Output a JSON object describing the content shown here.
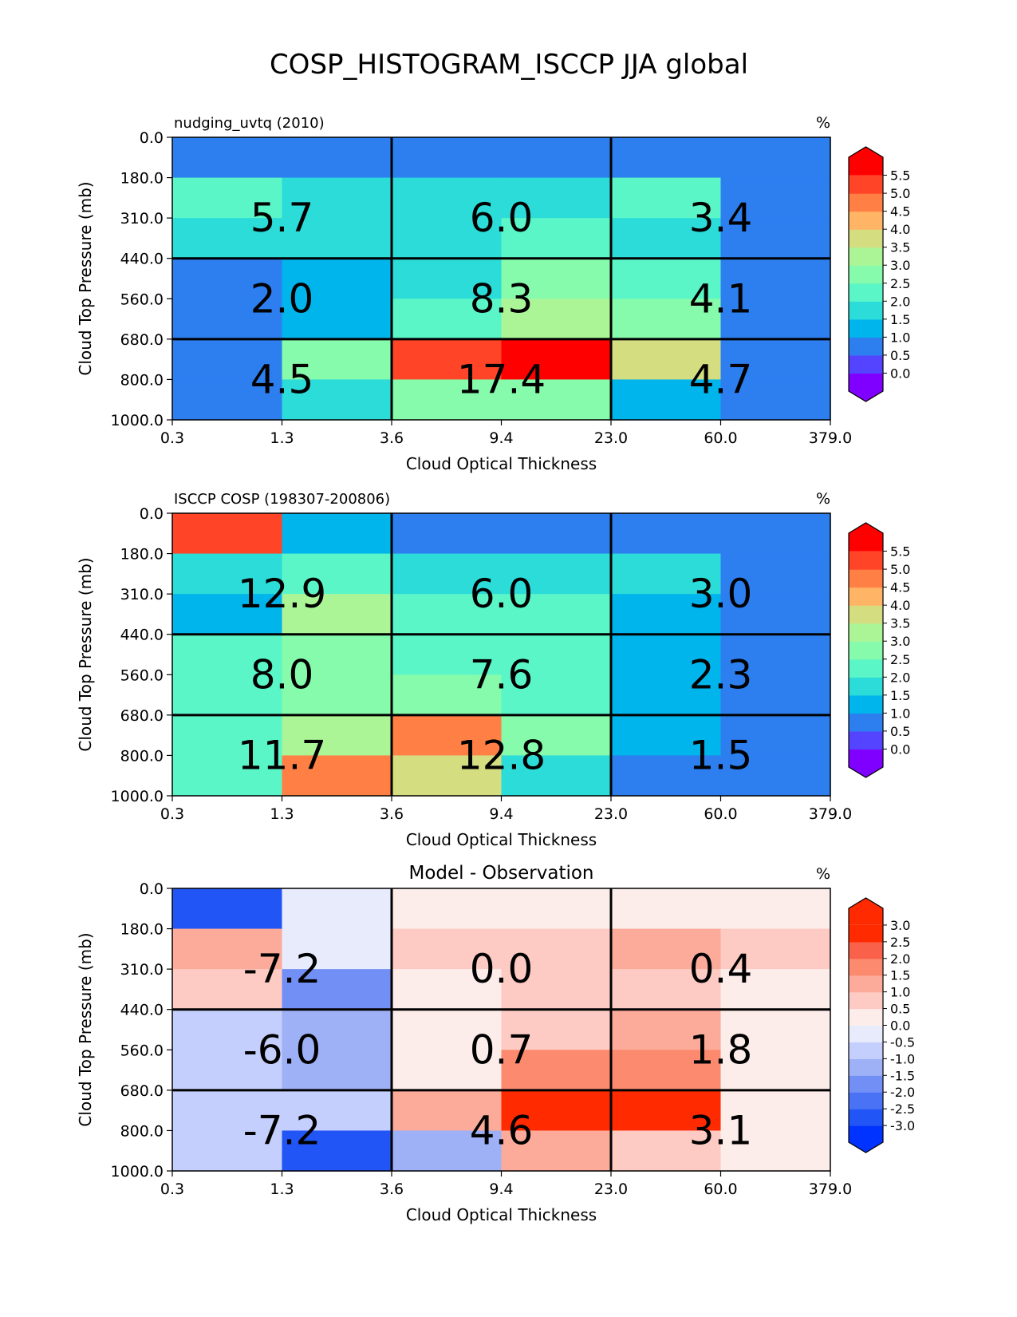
{
  "figure": {
    "title": "COSP_HISTOGRAM_ISCCP JJA global"
  },
  "chart_data": [
    {
      "type": "heatmap",
      "title": "nudging_uvtq (2010)",
      "units": "%",
      "xlabel": "Cloud Optical Thickness",
      "ylabel": "Cloud Top Pressure (mb)",
      "x_ticks": [
        "0.3",
        "1.3",
        "3.6",
        "9.4",
        "23.0",
        "60.0",
        "379.0"
      ],
      "y_ticks": [
        "0.0",
        "180.0",
        "310.0",
        "440.0",
        "560.0",
        "680.0",
        "800.0",
        "1000.0"
      ],
      "values": [
        [
          0.3,
          0.3,
          0.3,
          0.3,
          0.3,
          0.3
        ],
        [
          2.0,
          1.5,
          1.5,
          1.5,
          2.0,
          0.3
        ],
        [
          1.5,
          1.5,
          1.5,
          2.0,
          1.5,
          0.3
        ],
        [
          0.3,
          0.8,
          1.5,
          2.5,
          2.0,
          0.3
        ],
        [
          0.3,
          0.8,
          2.0,
          3.0,
          2.5,
          0.3
        ],
        [
          0.3,
          2.5,
          5.2,
          5.8,
          3.7,
          0.3
        ],
        [
          0.3,
          1.5,
          2.5,
          2.5,
          0.8,
          0.3
        ]
      ],
      "group_labels": [
        [
          "5.7",
          "6.0",
          "3.4"
        ],
        [
          "2.0",
          "8.3",
          "4.1"
        ],
        [
          "4.5",
          "17.4",
          "4.7"
        ]
      ],
      "colorbar": {
        "ticks": [
          "5.5",
          "5.0",
          "4.5",
          "4.0",
          "3.5",
          "3.0",
          "2.5",
          "2.0",
          "1.5",
          "1.0",
          "0.5",
          "0.0"
        ],
        "min": -0.25,
        "max": 5.75,
        "step": 0.5
      }
    },
    {
      "type": "heatmap",
      "title": "ISCCP COSP (198307-200806)",
      "units": "%",
      "xlabel": "Cloud Optical Thickness",
      "ylabel": "Cloud Top Pressure (mb)",
      "x_ticks": [
        "0.3",
        "1.3",
        "3.6",
        "9.4",
        "23.0",
        "60.0",
        "379.0"
      ],
      "y_ticks": [
        "0.0",
        "180.0",
        "310.0",
        "440.0",
        "560.0",
        "680.0",
        "800.0",
        "1000.0"
      ],
      "values": [
        [
          5.2,
          0.8,
          0.3,
          0.3,
          0.3,
          0.3
        ],
        [
          1.5,
          2.0,
          1.5,
          1.5,
          1.5,
          0.3
        ],
        [
          0.8,
          3.2,
          2.0,
          2.0,
          0.8,
          0.3
        ],
        [
          2.0,
          2.5,
          2.0,
          2.0,
          0.8,
          0.3
        ],
        [
          2.0,
          2.5,
          2.5,
          2.0,
          0.8,
          0.3
        ],
        [
          2.0,
          3.2,
          4.7,
          2.7,
          0.8,
          0.3
        ],
        [
          2.0,
          4.7,
          3.7,
          1.5,
          0.3,
          0.3
        ]
      ],
      "group_labels": [
        [
          "12.9",
          "6.0",
          "3.0"
        ],
        [
          "8.0",
          "7.6",
          "2.3"
        ],
        [
          "11.7",
          "12.8",
          "1.5"
        ]
      ],
      "colorbar": {
        "ticks": [
          "5.5",
          "5.0",
          "4.5",
          "4.0",
          "3.5",
          "3.0",
          "2.5",
          "2.0",
          "1.5",
          "1.0",
          "0.5",
          "0.0"
        ],
        "min": -0.25,
        "max": 5.75,
        "step": 0.5
      }
    },
    {
      "type": "heatmap",
      "title": "Model - Observation",
      "units": "%",
      "xlabel": "Cloud Optical Thickness",
      "ylabel": "Cloud Top Pressure (mb)",
      "x_ticks": [
        "0.3",
        "1.3",
        "3.6",
        "9.4",
        "23.0",
        "60.0",
        "379.0"
      ],
      "y_ticks": [
        "0.0",
        "180.0",
        "310.0",
        "440.0",
        "560.0",
        "680.0",
        "800.0",
        "1000.0"
      ],
      "values": [
        [
          -3.2,
          -0.7,
          -0.3,
          -0.3,
          -0.3,
          -0.3
        ],
        [
          0.7,
          -0.7,
          0.2,
          0.2,
          0.7,
          0.2
        ],
        [
          0.2,
          -2.2,
          -0.3,
          0.2,
          0.2,
          -0.3
        ],
        [
          -1.2,
          -1.7,
          -0.3,
          0.2,
          0.7,
          -0.3
        ],
        [
          -1.2,
          -1.7,
          -0.3,
          1.2,
          1.2,
          -0.3
        ],
        [
          -1.2,
          -1.2,
          0.7,
          3.2,
          3.2,
          -0.3
        ],
        [
          -1.2,
          -3.2,
          -1.7,
          0.7,
          0.2,
          -0.3
        ]
      ],
      "group_labels": [
        [
          "-7.2",
          "0.0",
          "0.4"
        ],
        [
          "-6.0",
          "0.7",
          "1.8"
        ],
        [
          "-7.2",
          "4.6",
          "3.1"
        ]
      ],
      "colorbar": {
        "ticks": [
          "3.0",
          "2.5",
          "2.0",
          "1.5",
          "1.0",
          "0.5",
          "0.0",
          "-0.5",
          "-1.0",
          "-1.5",
          "-2.0",
          "-2.5",
          "-3.0"
        ],
        "min": -3.5,
        "max": 3.5,
        "step": 0.5
      }
    }
  ],
  "colors": {
    "rainbow_bins": [
      "#8000ff",
      "#5544ff",
      "#2d7ff0",
      "#00b4ec",
      "#2bdcd8",
      "#5af6c8",
      "#85fbab",
      "#abf597",
      "#d4dd80",
      "#ffb466",
      "#ff7f45",
      "#ff4427",
      "#ff0000"
    ],
    "diverging_bins": [
      "#0033ff",
      "#2255f5",
      "#4a72f5",
      "#728ff5",
      "#9eb1f7",
      "#c4cffd",
      "#e8ebfc",
      "#fdedea",
      "#fdcbc3",
      "#fcab9a",
      "#fb8a6f",
      "#f9614a",
      "#ff2a00",
      "#ff2a00"
    ]
  }
}
